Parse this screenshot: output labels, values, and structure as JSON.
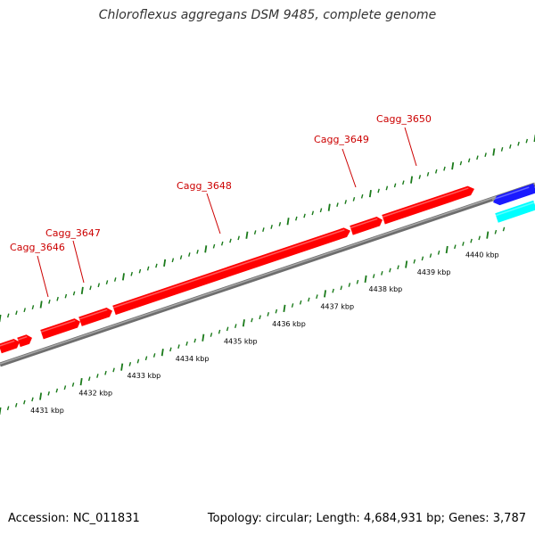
{
  "title": "Chloroflexus aggregans DSM 9485, complete genome",
  "footer": {
    "accession": "Accession: NC_011831",
    "summary": "Topology: circular; Length: 4,684,931 bp; Genes: 3,787"
  },
  "colors": {
    "forward_gene": "#ff0000",
    "reverse_gene": "#1a1aff",
    "reverse_gene_alt": "#00ffff",
    "backbone": "#888888",
    "ticks": "#1a7a1a",
    "label": "#cc0000"
  },
  "genes": [
    {
      "name": "Cagg_3646",
      "strand": "+"
    },
    {
      "name": "Cagg_3647",
      "strand": "+"
    },
    {
      "name": "Cagg_3648",
      "strand": "+"
    },
    {
      "name": "Cagg_3649",
      "strand": "+"
    },
    {
      "name": "Cagg_3650",
      "strand": "+"
    }
  ],
  "scale_labels": [
    "4431 kbp",
    "4432 kbp",
    "4433 kbp",
    "4434 kbp",
    "4435 kbp",
    "4436 kbp",
    "4437 kbp",
    "4438 kbp",
    "4439 kbp",
    "4440 kbp"
  ]
}
